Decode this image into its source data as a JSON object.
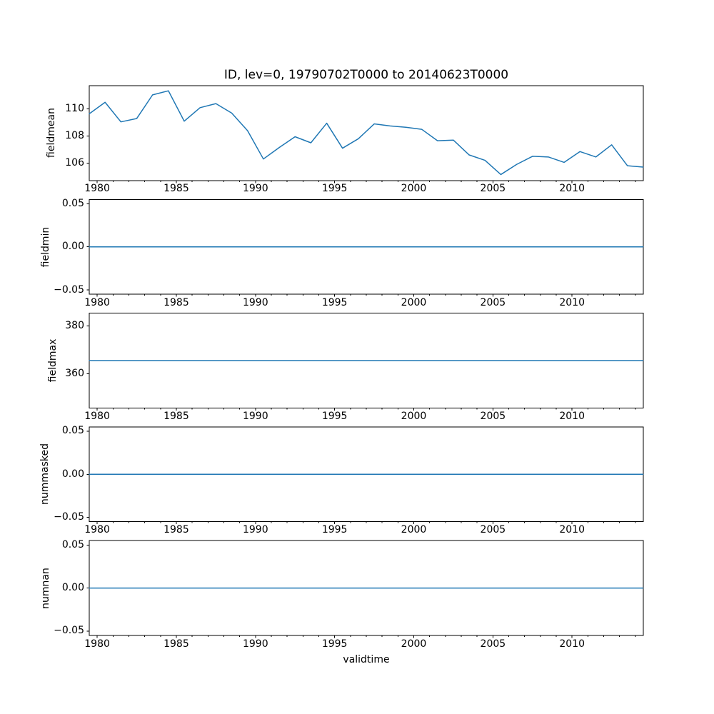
{
  "figure": {
    "background": "#ffffff",
    "text_color": "#000000"
  },
  "chart_data": {
    "type": "line",
    "title": "ID, lev=0, 19790702T0000 to 20140623T0000",
    "xlabel": "validtime",
    "line_color": "#1f77b4",
    "grid": false,
    "legend": "none",
    "x_range": [
      1979.5,
      2014.5
    ],
    "x_major_ticks": [
      1980,
      1985,
      1990,
      1995,
      2000,
      2005,
      2010
    ],
    "x_minor_tick_step_years": 1,
    "x": [
      1979.5,
      1980.5,
      1981.5,
      1982.5,
      1983.5,
      1984.5,
      1985.5,
      1986.5,
      1987.5,
      1988.5,
      1989.5,
      1990.5,
      1991.5,
      1992.5,
      1993.5,
      1994.5,
      1995.5,
      1996.5,
      1997.5,
      1998.5,
      1999.5,
      2000.5,
      2001.5,
      2002.5,
      2003.5,
      2004.5,
      2005.5,
      2006.5,
      2007.5,
      2008.5,
      2009.5,
      2010.5,
      2011.5,
      2012.5,
      2013.5,
      2014.48
    ],
    "subplots": [
      {
        "ylabel": "fieldmean",
        "ylim": [
          104.71,
          111.73
        ],
        "yticks": [
          {
            "v": 106,
            "label": "106"
          },
          {
            "v": 108,
            "label": "108"
          },
          {
            "v": 110,
            "label": "110"
          }
        ],
        "y": [
          109.65,
          110.5,
          109.05,
          109.3,
          111.05,
          111.35,
          109.1,
          110.1,
          110.4,
          109.7,
          108.4,
          106.3,
          107.15,
          107.95,
          107.5,
          108.95,
          107.1,
          107.8,
          108.9,
          108.75,
          108.65,
          108.5,
          107.65,
          107.7,
          106.6,
          106.2,
          105.15,
          105.9,
          106.5,
          106.45,
          106.05,
          106.85,
          106.45,
          107.35,
          105.8,
          105.7
        ]
      },
      {
        "ylabel": "fieldmin",
        "ylim": [
          -0.055,
          0.055
        ],
        "yticks": [
          {
            "v": -0.05,
            "label": "−0.05"
          },
          {
            "v": 0,
            "label": "0.00"
          },
          {
            "v": 0.05,
            "label": "0.05"
          }
        ],
        "y_constant": 0
      },
      {
        "ylabel": "fieldmax",
        "ylim": [
          345.6,
          385.4
        ],
        "yticks": [
          {
            "v": 360,
            "label": "360"
          },
          {
            "v": 380,
            "label": "380"
          }
        ],
        "y_constant": 365.5
      },
      {
        "ylabel": "nummasked",
        "ylim": [
          -0.055,
          0.055
        ],
        "yticks": [
          {
            "v": -0.05,
            "label": "−0.05"
          },
          {
            "v": 0,
            "label": "0.00"
          },
          {
            "v": 0.05,
            "label": "0.05"
          }
        ],
        "y_constant": 0
      },
      {
        "ylabel": "numnan",
        "ylim": [
          -0.055,
          0.055
        ],
        "yticks": [
          {
            "v": -0.05,
            "label": "−0.05"
          },
          {
            "v": 0,
            "label": "0.00"
          },
          {
            "v": 0.05,
            "label": "0.05"
          }
        ],
        "y_constant": 0
      }
    ]
  }
}
